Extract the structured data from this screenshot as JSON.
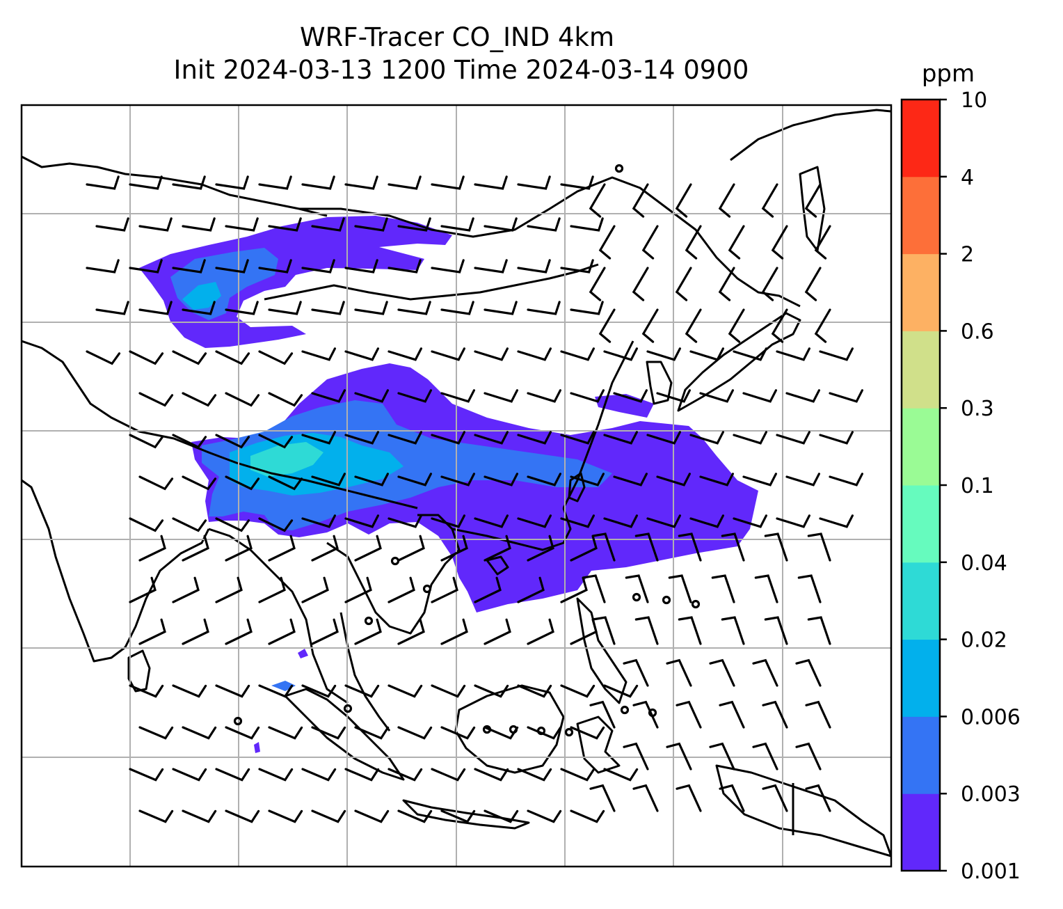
{
  "title_line1": "WRF-Tracer CO_IND 4km",
  "title_line2": "Init 2024-03-13 1200 Time 2024-03-14 0900",
  "colorbar": {
    "unit": "ppm",
    "levels": [
      "0.001",
      "0.003",
      "0.006",
      "0.02",
      "0.04",
      "0.1",
      "0.3",
      "0.6",
      "2",
      "4",
      "10"
    ],
    "colors": [
      "#6128fb",
      "#3474f4",
      "#02b0ec",
      "#2edad6",
      "#66fbbe",
      "#9afb95",
      "#d0e08a",
      "#fdb163",
      "#fd6f39",
      "#fd2816"
    ]
  },
  "map": {
    "region": "South, Southeast and East Asia",
    "gridlines": true,
    "coastlines": true,
    "wind_barbs": true,
    "plume_colors": {
      "lowest": "#6128fb",
      "low": "#3474f4",
      "mid": "#02b0ec",
      "high": "#2edad6"
    }
  }
}
